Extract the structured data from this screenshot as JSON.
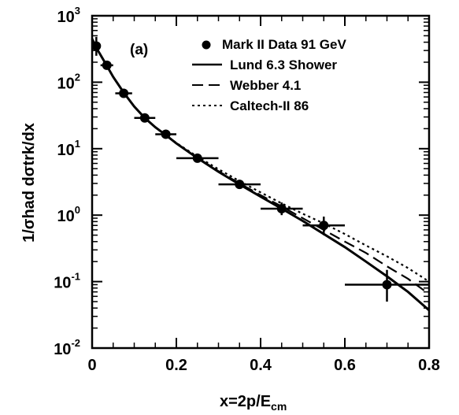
{
  "chart_data": {
    "type": "scatter",
    "panel_label": "(a)",
    "xlabel": {
      "main": "x=2p/E",
      "sub": "cm"
    },
    "ylabel": "1/σhad dσtrk/dx",
    "xlim": [
      0,
      0.8
    ],
    "ylim": [
      0.01,
      1000
    ],
    "yscale": "log",
    "x_ticks": [
      "0",
      "0.2",
      "0.4",
      "0.6",
      "0.8"
    ],
    "y_ticks": [
      {
        "base": "10",
        "exp": "-2"
      },
      {
        "base": "10",
        "exp": "-1"
      },
      {
        "base": "10",
        "exp": "0"
      },
      {
        "base": "10",
        "exp": "1"
      },
      {
        "base": "10",
        "exp": "2"
      },
      {
        "base": "10",
        "exp": "3"
      }
    ],
    "legend_position": "top-right",
    "data_points": {
      "name": "Mark II  Data 91 GeV",
      "points": [
        {
          "x": 0.01,
          "y": 350,
          "xerr": 0.01,
          "yerr_lo": 100,
          "yerr_hi": 130
        },
        {
          "x": 0.035,
          "y": 180,
          "xerr": 0.015
        },
        {
          "x": 0.075,
          "y": 68,
          "xerr": 0.02
        },
        {
          "x": 0.125,
          "y": 29,
          "xerr": 0.025
        },
        {
          "x": 0.175,
          "y": 16.5,
          "xerr": 0.025
        },
        {
          "x": 0.25,
          "y": 7.2,
          "xerr": 0.05
        },
        {
          "x": 0.35,
          "y": 2.9,
          "xerr": 0.05
        },
        {
          "x": 0.45,
          "y": 1.25,
          "xerr": 0.05,
          "yerr_lo": 0.25,
          "yerr_hi": 0.3
        },
        {
          "x": 0.55,
          "y": 0.7,
          "xerr": 0.05,
          "yerr_lo": 0.2,
          "yerr_hi": 0.25
        },
        {
          "x": 0.7,
          "y": 0.09,
          "xerr": 0.1,
          "yerr_lo": 0.04,
          "yerr_hi": 0.06
        }
      ]
    },
    "series": [
      {
        "name": "Lund 6.3 Shower",
        "style": "solid",
        "x": [
          0.0,
          0.01,
          0.03,
          0.05,
          0.075,
          0.1,
          0.125,
          0.15,
          0.175,
          0.2,
          0.25,
          0.3,
          0.35,
          0.4,
          0.45,
          0.5,
          0.55,
          0.6,
          0.65,
          0.7,
          0.75,
          0.8
        ],
        "y": [
          450,
          330,
          200,
          120,
          70,
          43,
          29,
          21,
          16,
          12,
          7.2,
          4.5,
          2.9,
          1.9,
          1.25,
          0.82,
          0.52,
          0.33,
          0.2,
          0.12,
          0.07,
          0.037
        ]
      },
      {
        "name": "Webber 4.1",
        "style": "dashed",
        "x": [
          0.0,
          0.01,
          0.03,
          0.05,
          0.075,
          0.1,
          0.125,
          0.15,
          0.175,
          0.2,
          0.25,
          0.3,
          0.35,
          0.4,
          0.45,
          0.5,
          0.55,
          0.6,
          0.65,
          0.7,
          0.75,
          0.8
        ],
        "y": [
          450,
          330,
          200,
          120,
          70,
          43,
          29,
          21,
          16,
          12,
          7.3,
          4.6,
          3.0,
          2.0,
          1.35,
          0.9,
          0.6,
          0.4,
          0.27,
          0.17,
          0.11,
          0.065
        ]
      },
      {
        "name": "Caltech-II 86",
        "style": "dotted",
        "x": [
          0.0,
          0.01,
          0.03,
          0.05,
          0.075,
          0.1,
          0.125,
          0.15,
          0.175,
          0.2,
          0.25,
          0.3,
          0.35,
          0.4,
          0.45,
          0.5,
          0.55,
          0.6,
          0.65,
          0.7,
          0.75,
          0.8
        ],
        "y": [
          450,
          330,
          200,
          120,
          70,
          43,
          29,
          21,
          16,
          12.2,
          7.6,
          4.9,
          3.25,
          2.2,
          1.5,
          1.05,
          0.75,
          0.52,
          0.35,
          0.24,
          0.16,
          0.1
        ]
      }
    ]
  }
}
